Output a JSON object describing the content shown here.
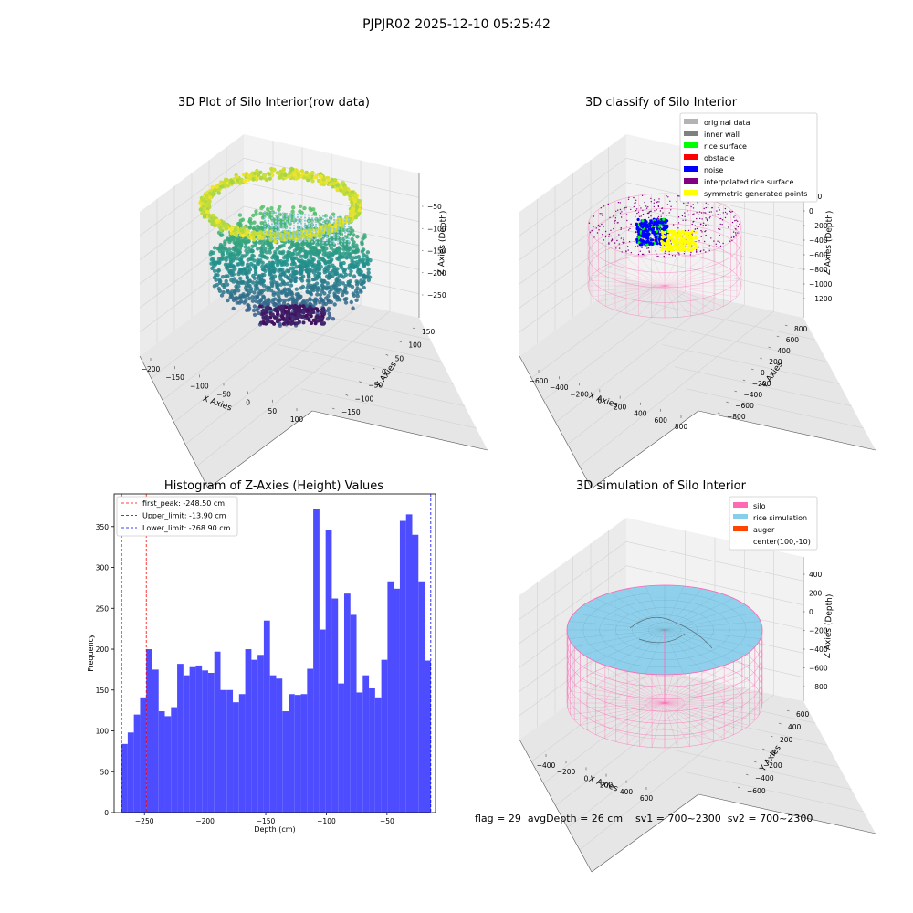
{
  "suptitle": "PJPJR02 2025-12-10 05:25:42",
  "footer_text": "flag = 29  avgDepth = 26 cm    sv1 = 700~2300  sv2 = 700~2300",
  "colors": {
    "histogram_bar": "#4d4dff",
    "first_peak_line": "#ff0000",
    "limit_line": "#0000ff",
    "silo_wire": "#ff69b4",
    "rice_fill": "#87ceeb",
    "noise": "#0000ff",
    "yellow": "#ffff00",
    "purple": "#800080"
  },
  "chart_data": [
    {
      "type": "scatter",
      "title": "3D Plot of Silo Interior(row data)",
      "xlabel": "X Axies",
      "ylabel": "Y Axies",
      "zlabel": "Z Axies (Depth)",
      "x_ticks": [
        "−200",
        "−150",
        "−100",
        "−50",
        "0",
        "50",
        "100"
      ],
      "y_ticks": [
        "−150",
        "−100",
        "−50",
        "0",
        "50",
        "100",
        "150"
      ],
      "z_ticks": [
        "−50",
        "−100",
        "−150",
        "−200",
        "−250"
      ],
      "colormap": "viridis"
    },
    {
      "type": "scatter",
      "title": "3D classify of Silo Interior",
      "xlabel": "X Axies",
      "ylabel": "Y Axies",
      "zlabel": "Z Axies (Depth)",
      "x_ticks": [
        "−600",
        "−400",
        "−200",
        "0",
        "200",
        "400",
        "600",
        "800"
      ],
      "y_ticks": [
        "−800",
        "−600",
        "−400",
        "−200",
        "0",
        "200",
        "400",
        "600",
        "800"
      ],
      "z_ticks": [
        "200",
        "0",
        "−200",
        "−400",
        "−600",
        "−800",
        "−1000",
        "−1200"
      ],
      "legend_position": "top-right",
      "legend": [
        {
          "label": "original data",
          "color": "#b3b3b3"
        },
        {
          "label": "inner wall",
          "color": "#808080"
        },
        {
          "label": "rice surface",
          "color": "#00ff00"
        },
        {
          "label": "obstacle",
          "color": "#ff0000"
        },
        {
          "label": "noise",
          "color": "#0000ff"
        },
        {
          "label": "interpolated rice surface",
          "color": "#800080"
        },
        {
          "label": "symmetric generated points",
          "color": "#ffff00"
        }
      ]
    },
    {
      "type": "bar",
      "title": "Histogram of Z-Axies (Height) Values",
      "xlabel": "Depth (cm)",
      "ylabel": "Frequency",
      "xlim": [
        -275,
        -10
      ],
      "ylim": [
        0,
        390
      ],
      "x_ticks": [
        -250,
        -200,
        -150,
        -100,
        -50
      ],
      "x_tick_labels": [
        "−250",
        "−200",
        "−150",
        "−100",
        "−50"
      ],
      "y_ticks": [
        0,
        50,
        100,
        150,
        200,
        250,
        300,
        350
      ],
      "bin_start": -268.9,
      "bin_width": 5.1,
      "values": [
        84,
        98,
        120,
        141,
        200,
        175,
        124,
        118,
        129,
        182,
        168,
        178,
        180,
        174,
        171,
        197,
        150,
        150,
        135,
        145,
        200,
        187,
        193,
        235,
        168,
        164,
        124,
        145,
        144,
        145,
        176,
        372,
        224,
        346,
        262,
        158,
        268,
        242,
        147,
        168,
        152,
        141,
        187,
        283,
        274,
        357,
        365,
        340,
        283,
        186
      ],
      "lines": [
        {
          "x": -248.5,
          "label": "first_peak: -248.50 cm",
          "color": "#ff0000"
        },
        {
          "x": -13.9,
          "label": "Upper_limit: -13.90 cm",
          "color": "#0000ff"
        },
        {
          "x": -268.9,
          "label": "Lower_limit: -268.90 cm",
          "color": "#0000ff"
        }
      ],
      "legend_position": "top-left"
    },
    {
      "type": "scatter",
      "title": "3D simulation of Silo Interior",
      "xlabel": "X Axies",
      "ylabel": "Y Axies",
      "zlabel": "Z Axies (Depth)",
      "x_ticks": [
        "−400",
        "−200",
        "0",
        "200",
        "400",
        "600"
      ],
      "y_ticks": [
        "−600",
        "−400",
        "−200",
        "0",
        "200",
        "400",
        "600"
      ],
      "z_ticks": [
        "400",
        "200",
        "0",
        "−200",
        "−400",
        "−600",
        "−800"
      ],
      "legend_position": "top-right",
      "legend": [
        {
          "label": "silo",
          "color": "#ff69b4"
        },
        {
          "label": "rice simulation",
          "color": "#87ceeb"
        },
        {
          "label": "auger",
          "color": "#ff4500"
        },
        {
          "label": "center(100,-10)",
          "color": ""
        }
      ]
    }
  ]
}
